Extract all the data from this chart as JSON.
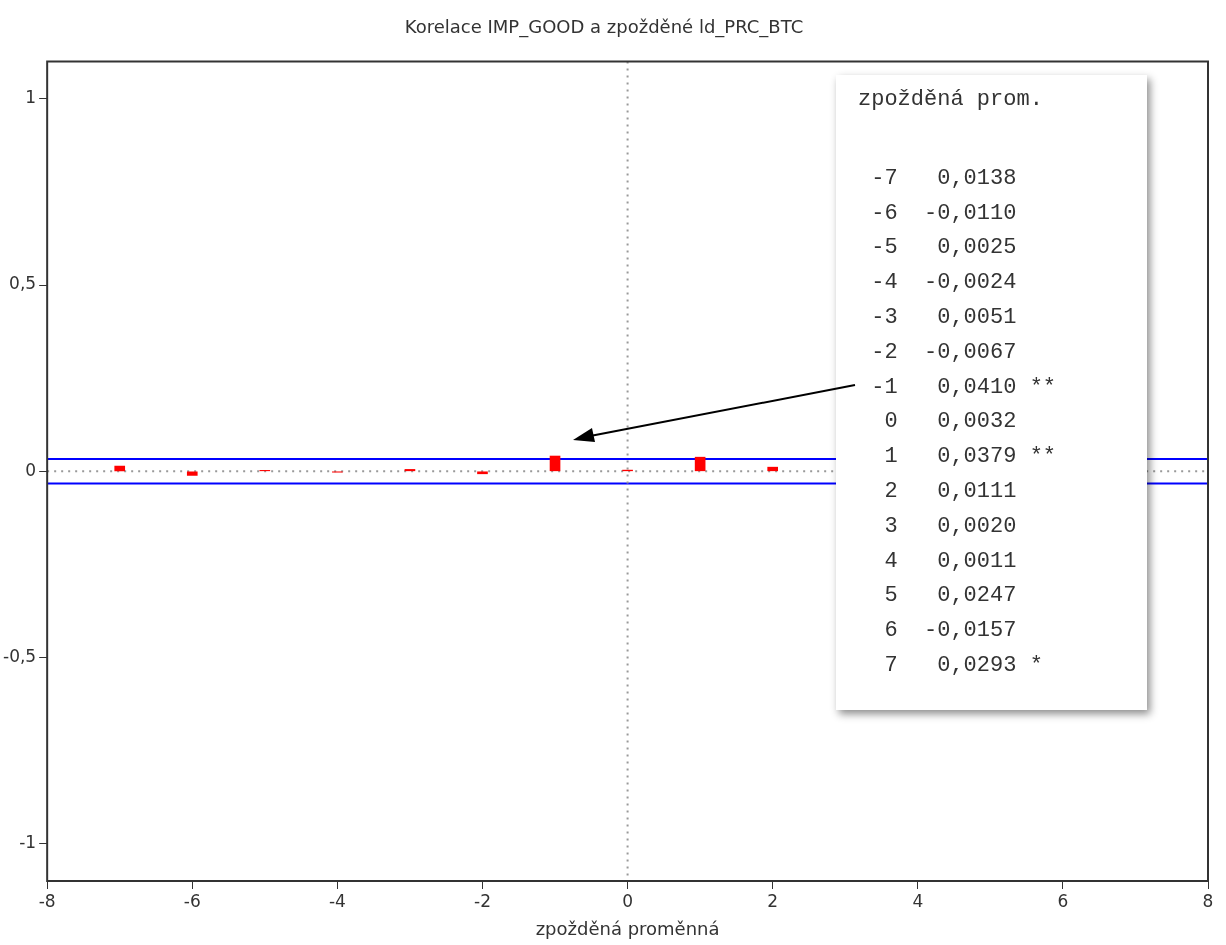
{
  "chart_data": {
    "type": "bar",
    "title": "Korelace IMP_GOOD a zpožděné ld_PRC_BTC",
    "xlabel": "zpožděná proměnná",
    "x": [
      -7,
      -6,
      -5,
      -4,
      -3,
      -2,
      -1,
      0,
      1,
      2
    ],
    "values": [
      0.0138,
      -0.011,
      0.0025,
      -0.0024,
      0.0051,
      -0.0067,
      0.041,
      0.0032,
      0.0379,
      0.0111
    ],
    "color": "#ff0000",
    "xlim": [
      -8,
      8
    ],
    "xticks": [
      -8,
      -6,
      -4,
      -2,
      0,
      2,
      4,
      6,
      8
    ],
    "ylim": [
      -1.1,
      1.1
    ],
    "yticks": [
      {
        "value": -1,
        "label": "-1"
      },
      {
        "value": -0.5,
        "label": "-0,5"
      },
      {
        "value": 0,
        "label": "0"
      },
      {
        "value": 0.5,
        "label": "0,5"
      },
      {
        "value": 1,
        "label": "1"
      }
    ],
    "grid": false,
    "legend": false,
    "ref_lines": [
      {
        "axis": "y",
        "value": 0.033,
        "color": "#0000ff",
        "line_style": "solid"
      },
      {
        "axis": "y",
        "value": -0.033,
        "color": "#0000ff",
        "line_style": "solid"
      },
      {
        "axis": "y",
        "value": 0,
        "color": "#999999",
        "line_style": "dotted"
      },
      {
        "axis": "x",
        "value": 0,
        "color": "#999999",
        "line_style": "dotted"
      }
    ],
    "annotations": [
      "zpožděná prom.",
      " -7   0,0138",
      " -6  -0,0110",
      " -5   0,0025",
      " -4  -0,0024",
      " -3   0,0051",
      " -2  -0,0067",
      " -1   0,0410 **",
      "  0   0,0032",
      "  1   0,0379 **",
      "  2   0,0111",
      "  3   0,0020",
      "  4   0,0011",
      "  5   0,0247",
      "  6  -0,0157",
      "  7   0,0293 *"
    ]
  }
}
